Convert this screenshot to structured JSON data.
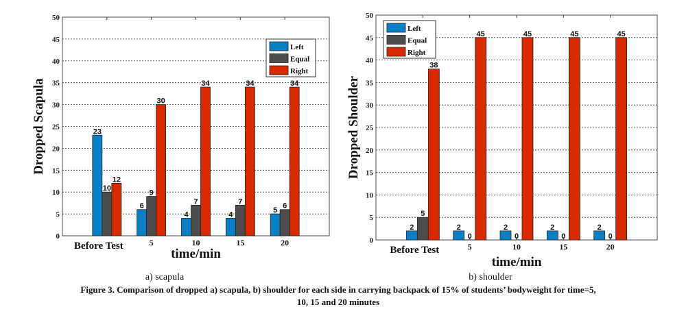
{
  "colors": {
    "Left": "#0a7fc6",
    "Equal": "#4d4d4d",
    "Right": "#d82a00"
  },
  "chart_data": [
    {
      "type": "bar",
      "title": "a) scapula",
      "xlabel": "time/min",
      "ylabel": "Dropped Scapula",
      "categories": [
        "Before Test",
        "5",
        "10",
        "15",
        "20"
      ],
      "series": [
        {
          "name": "Left",
          "values": [
            23,
            6,
            4,
            4,
            5
          ]
        },
        {
          "name": "Equal",
          "values": [
            10,
            9,
            7,
            7,
            6
          ]
        },
        {
          "name": "Right",
          "values": [
            12,
            30,
            34,
            34,
            34
          ]
        }
      ],
      "ylim": [
        0,
        50
      ],
      "yticks": [
        0,
        5,
        10,
        15,
        20,
        25,
        30,
        35,
        40,
        45,
        50
      ],
      "grid": true,
      "legend": "top-right"
    },
    {
      "type": "bar",
      "title": "b) shoulder",
      "xlabel": "time/min",
      "ylabel": "Dropped Shoulder",
      "categories": [
        "Before Test",
        "5",
        "10",
        "15",
        "20"
      ],
      "series": [
        {
          "name": "Left",
          "values": [
            2,
            2,
            2,
            2,
            2
          ]
        },
        {
          "name": "Equal",
          "values": [
            5,
            0,
            0,
            0,
            0
          ]
        },
        {
          "name": "Right",
          "values": [
            38,
            45,
            45,
            45,
            45
          ]
        }
      ],
      "ylim": [
        0,
        50
      ],
      "yticks": [
        0,
        5,
        10,
        15,
        20,
        25,
        30,
        35,
        40,
        45,
        50
      ],
      "grid": true,
      "legend": "top-left"
    }
  ],
  "caption": {
    "line1": "Figure 3. Comparison of dropped a) scapula, b) shoulder for each side in carrying backpack of 15% of students’ bodyweight for time=5,",
    "line2": "10, 15 and 20 minutes"
  }
}
